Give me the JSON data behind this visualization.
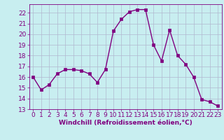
{
  "x": [
    0,
    1,
    2,
    3,
    4,
    5,
    6,
    7,
    8,
    9,
    10,
    11,
    12,
    13,
    14,
    15,
    16,
    17,
    18,
    19,
    20,
    21,
    22,
    23
  ],
  "y": [
    16.0,
    14.8,
    15.3,
    16.3,
    16.7,
    16.7,
    16.6,
    16.3,
    15.5,
    16.7,
    20.3,
    21.4,
    22.1,
    22.3,
    22.3,
    19.0,
    17.5,
    20.4,
    18.0,
    17.2,
    16.0,
    13.9,
    13.7,
    13.3
  ],
  "line_color": "#800080",
  "marker": "s",
  "marker_size": 2.2,
  "linewidth": 1.0,
  "xlabel": "Windchill (Refroidissement éolien,°C)",
  "xlabel_fontsize": 6.5,
  "xlabel_color": "#800080",
  "bg_color": "#c8eef0",
  "grid_color": "#b0b8d0",
  "tick_label_color": "#800080",
  "tick_label_fontsize": 6.5,
  "xlim": [
    -0.5,
    23.5
  ],
  "ylim": [
    13,
    22.8
  ],
  "yticks": [
    13,
    14,
    15,
    16,
    17,
    18,
    19,
    20,
    21,
    22
  ],
  "xticks": [
    0,
    1,
    2,
    3,
    4,
    5,
    6,
    7,
    8,
    9,
    10,
    11,
    12,
    13,
    14,
    15,
    16,
    17,
    18,
    19,
    20,
    21,
    22,
    23
  ]
}
